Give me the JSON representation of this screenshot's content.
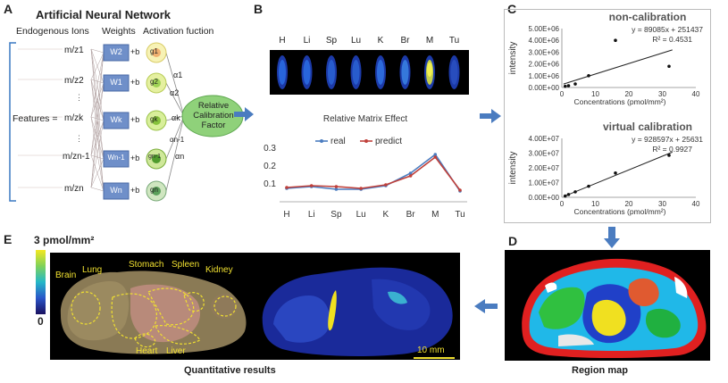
{
  "panels": {
    "a": {
      "letter": "A",
      "title": "Artificial Neural Network",
      "col_headers": [
        "Endogenous Ions",
        "Weights",
        "Activation fuction"
      ],
      "features_label": "Features",
      "inputs": [
        "m/z1",
        "m/z2",
        "m/zk",
        "m/zn-1",
        "m/zn"
      ],
      "weights": [
        "W2",
        "W1",
        "Wk",
        "Wn-1",
        "Wn"
      ],
      "bias": "+b",
      "activations": [
        "g1",
        "g2",
        "gk",
        "gn-1",
        "gn"
      ],
      "alphas": [
        "α1",
        "α2",
        "αk",
        "αn-1",
        "αn"
      ],
      "output": "Relative Calibration Factor",
      "colors": {
        "weight_box": "#6f8fc9",
        "act_outer": "#f4f1a8",
        "output": "#8fd17a"
      }
    },
    "b": {
      "letter": "B",
      "tissue_labels": [
        "H",
        "Li",
        "Sp",
        "Lu",
        "K",
        "Br",
        "M",
        "Tu"
      ]
    },
    "c": {
      "letter": "C"
    },
    "d": {
      "letter": "D",
      "caption": "Region map"
    },
    "e": {
      "letter": "E",
      "caption": "Quantitative results",
      "colorbar_max": "3 pmol/mm²",
      "colorbar_min": "0",
      "organs": [
        "Brain",
        "Lung",
        "Stomach",
        "Spleen",
        "Kidney",
        "Heart",
        "Liver"
      ],
      "scalebar": "10 mm"
    }
  },
  "chart_data": [
    {
      "type": "line",
      "title": "Relative Matrix Effect",
      "categories": [
        "H",
        "Li",
        "Sp",
        "Lu",
        "K",
        "Br",
        "M",
        "Tu"
      ],
      "series": [
        {
          "name": "real",
          "values": [
            0.075,
            0.085,
            0.07,
            0.07,
            0.09,
            0.16,
            0.265,
            0.06
          ],
          "color": "#4a7cc0"
        },
        {
          "name": "predict",
          "values": [
            0.08,
            0.09,
            0.085,
            0.075,
            0.095,
            0.145,
            0.25,
            0.065
          ],
          "color": "#c0403a"
        }
      ],
      "yticks": [
        "0.1",
        "0.2",
        "0.3"
      ],
      "ylim": [
        0,
        0.32
      ],
      "legend": "top"
    },
    {
      "type": "scatter",
      "title": "non-calibration",
      "x": [
        1,
        2,
        4,
        8,
        16,
        32
      ],
      "y": [
        100000,
        150000,
        300000,
        1000000,
        4000000,
        1800000
      ],
      "trendline": {
        "slope": 89085,
        "intercept": 251437
      },
      "equation": "y = 89085x + 251437",
      "r2": "R² = 0.4531",
      "xlabel": "Concentrations (pmol/mm²)",
      "ylabel": "intensity",
      "xlim": [
        0,
        40
      ],
      "ylim": [
        0,
        5000000
      ],
      "xticks": [
        "0",
        "10",
        "20",
        "30",
        "40"
      ],
      "yticks": [
        "0.00E+00",
        "1.00E+06",
        "2.00E+06",
        "3.00E+06",
        "4.00E+06",
        "5.00E+06"
      ]
    },
    {
      "type": "scatter",
      "title": "virtual calibration",
      "x": [
        1,
        2,
        4,
        8,
        16,
        32
      ],
      "y": [
        900000,
        1900000,
        3700000,
        7500000,
        16500000,
        28500000
      ],
      "trendline": {
        "slope": 928597,
        "intercept": 25631
      },
      "equation": "y = 928597x + 25631",
      "r2": "R² = 0.9927",
      "xlabel": "Concentrations (pmol/mm²)",
      "ylabel": "intensity",
      "xlim": [
        0,
        40
      ],
      "ylim": [
        0,
        40000000
      ],
      "xticks": [
        "0",
        "10",
        "20",
        "30",
        "40"
      ],
      "yticks": [
        "0.00E+00",
        "1.00E+07",
        "2.00E+07",
        "3.00E+07",
        "4.00E+07"
      ]
    }
  ]
}
